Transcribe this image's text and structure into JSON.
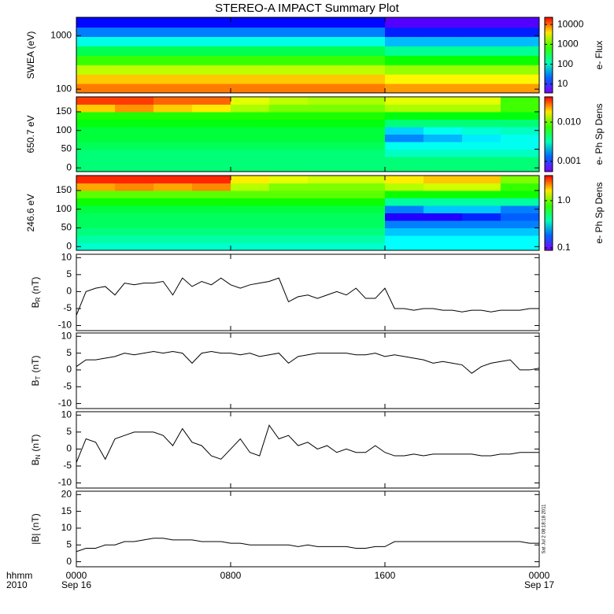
{
  "chart_data": [
    {
      "type": "heatmap",
      "title": "STEREO-A IMPACT Summary Plot",
      "ylabel": "SWEA (eV)",
      "yscale": "log",
      "xlim": [
        0,
        24
      ],
      "xticks": [
        0,
        8,
        16,
        24
      ],
      "ylim": [
        85,
        2200
      ],
      "yticks": [
        100,
        1000
      ],
      "x_edges": [
        0,
        2,
        4,
        6,
        8,
        10,
        12,
        14,
        16,
        18,
        20,
        22,
        24
      ],
      "y_edges": [
        85,
        127,
        190,
        285,
        427,
        640,
        960,
        1440,
        2200
      ],
      "z": [
        [
          9000,
          9000,
          9000,
          9000,
          9000,
          9000,
          9000,
          9000,
          7000,
          7000,
          7000,
          7000
        ],
        [
          5000,
          5000,
          5000,
          5000,
          5000,
          5000,
          5000,
          5000,
          3500,
          3500,
          3500,
          3500
        ],
        [
          2000,
          2000,
          2000,
          2000,
          2000,
          2000,
          2000,
          2000,
          1500,
          1500,
          1500,
          1500
        ],
        [
          700,
          700,
          700,
          700,
          700,
          700,
          700,
          700,
          500,
          500,
          500,
          500
        ],
        [
          250,
          250,
          250,
          250,
          250,
          250,
          250,
          250,
          150,
          150,
          150,
          150
        ],
        [
          80,
          80,
          80,
          80,
          80,
          80,
          80,
          80,
          40,
          40,
          40,
          40
        ],
        [
          25,
          25,
          25,
          25,
          25,
          25,
          25,
          25,
          12,
          12,
          12,
          12
        ],
        [
          10,
          10,
          10,
          10,
          10,
          10,
          10,
          10,
          5,
          5,
          5,
          5
        ]
      ],
      "colormap": "rainbow",
      "zscale": "log",
      "zlim": [
        3.6,
        23000
      ],
      "zticks": [
        10,
        100,
        1000,
        10000
      ],
      "zlabel": "e- Flux"
    },
    {
      "type": "heatmap",
      "ylabel": "650.7 eV",
      "xlim": [
        0,
        24
      ],
      "xticks": [
        0,
        8,
        16,
        24
      ],
      "ylim": [
        -10,
        190
      ],
      "yticks": [
        0,
        50,
        100,
        150
      ],
      "x_edges": [
        0,
        2,
        4,
        6,
        8,
        10,
        12,
        14,
        16,
        18,
        20,
        22,
        24
      ],
      "y_edges": [
        -10,
        10,
        30,
        50,
        70,
        90,
        110,
        130,
        150,
        170,
        190
      ],
      "z": [
        [
          0.004,
          0.004,
          0.004,
          0.004,
          0.004,
          0.004,
          0.004,
          0.004,
          0.004,
          0.004,
          0.004,
          0.004
        ],
        [
          0.004,
          0.004,
          0.004,
          0.004,
          0.004,
          0.004,
          0.004,
          0.004,
          0.004,
          0.004,
          0.004,
          0.004
        ],
        [
          0.004,
          0.004,
          0.004,
          0.004,
          0.004,
          0.004,
          0.004,
          0.004,
          0.003,
          0.003,
          0.003,
          0.003
        ],
        [
          0.0045,
          0.0045,
          0.0045,
          0.0045,
          0.0045,
          0.0045,
          0.0045,
          0.0045,
          0.0025,
          0.0025,
          0.0025,
          0.0025
        ],
        [
          0.005,
          0.005,
          0.005,
          0.005,
          0.005,
          0.005,
          0.005,
          0.005,
          0.0015,
          0.0018,
          0.0022,
          0.0025
        ],
        [
          0.005,
          0.005,
          0.005,
          0.005,
          0.005,
          0.005,
          0.005,
          0.005,
          0.002,
          0.0025,
          0.0028,
          0.003
        ],
        [
          0.006,
          0.006,
          0.006,
          0.006,
          0.006,
          0.006,
          0.006,
          0.006,
          0.004,
          0.004,
          0.004,
          0.004
        ],
        [
          0.007,
          0.007,
          0.007,
          0.007,
          0.007,
          0.007,
          0.007,
          0.007,
          0.006,
          0.006,
          0.006,
          0.006
        ],
        [
          0.02,
          0.025,
          0.02,
          0.018,
          0.012,
          0.01,
          0.01,
          0.01,
          0.012,
          0.012,
          0.012,
          0.008
        ],
        [
          0.035,
          0.035,
          0.03,
          0.03,
          0.015,
          0.013,
          0.012,
          0.012,
          0.015,
          0.015,
          0.015,
          0.008
        ]
      ],
      "colormap": "rainbow",
      "zscale": "log",
      "zlim": [
        0.00055,
        0.044
      ],
      "zticks": [
        0.001,
        {
          "value": 0.01,
          "label": "0.010"
        }
      ],
      "zlabel": "e- Ph Sp Dens"
    },
    {
      "type": "heatmap",
      "ylabel": "246.6 eV",
      "xlim": [
        0,
        24
      ],
      "xticks": [
        0,
        8,
        16,
        24
      ],
      "ylim": [
        -10,
        190
      ],
      "yticks": [
        0,
        50,
        100,
        150
      ],
      "x_edges": [
        0,
        2,
        4,
        6,
        8,
        10,
        12,
        14,
        16,
        18,
        20,
        22,
        24
      ],
      "y_edges": [
        -10,
        10,
        30,
        50,
        70,
        90,
        110,
        130,
        150,
        170,
        190
      ],
      "z": [
        [
          0.35,
          0.35,
          0.35,
          0.35,
          0.35,
          0.35,
          0.35,
          0.35,
          0.3,
          0.3,
          0.3,
          0.3
        ],
        [
          0.4,
          0.4,
          0.4,
          0.4,
          0.4,
          0.4,
          0.4,
          0.4,
          0.3,
          0.3,
          0.3,
          0.3
        ],
        [
          0.45,
          0.45,
          0.45,
          0.45,
          0.45,
          0.45,
          0.45,
          0.45,
          0.25,
          0.25,
          0.25,
          0.25
        ],
        [
          0.5,
          0.5,
          0.5,
          0.5,
          0.5,
          0.5,
          0.5,
          0.5,
          0.2,
          0.2,
          0.2,
          0.2
        ],
        [
          0.5,
          0.5,
          0.5,
          0.5,
          0.5,
          0.5,
          0.5,
          0.5,
          0.12,
          0.12,
          0.15,
          0.18
        ],
        [
          0.55,
          0.55,
          0.55,
          0.55,
          0.55,
          0.55,
          0.55,
          0.55,
          0.2,
          0.25,
          0.25,
          0.2
        ],
        [
          0.7,
          0.7,
          0.7,
          0.7,
          0.7,
          0.7,
          0.7,
          0.7,
          0.4,
          0.4,
          0.4,
          0.4
        ],
        [
          0.9,
          0.9,
          0.9,
          0.9,
          0.9,
          0.9,
          0.9,
          0.9,
          0.7,
          0.7,
          0.7,
          0.7
        ],
        [
          2,
          2.2,
          2,
          2.2,
          1.2,
          1,
          1,
          1,
          1.2,
          1.3,
          1.3,
          0.8
        ],
        [
          3,
          3,
          3,
          3,
          1.6,
          1.4,
          1.3,
          1.3,
          1.6,
          1.8,
          1.8,
          1
        ]
      ],
      "colormap": "rainbow",
      "zscale": "log",
      "zlim": [
        0.089,
        3.4
      ],
      "zticks": [
        0.1,
        {
          "value": 1,
          "label": "1.0"
        }
      ],
      "zlabel": "e- Ph Sp Dens"
    },
    {
      "type": "line",
      "ylabel": "B",
      "ylabel_sub": "R",
      "ylabel_unit": "(nT)",
      "color": "#000000",
      "xlim": [
        0,
        24
      ],
      "xticks": [
        0,
        8,
        16,
        24
      ],
      "ylim": [
        -11.5,
        11
      ],
      "yticks": [
        -10,
        -5,
        0,
        5,
        10
      ],
      "x": [
        0,
        0.5,
        1,
        1.5,
        2,
        2.5,
        3,
        3.5,
        4,
        4.5,
        5,
        5.5,
        6,
        6.5,
        7,
        7.5,
        8,
        8.5,
        9,
        9.5,
        10,
        10.5,
        11,
        11.5,
        12,
        12.5,
        13,
        13.5,
        14,
        14.5,
        15,
        15.5,
        16,
        16.5,
        17,
        17.5,
        18,
        18.5,
        19,
        19.5,
        20,
        20.5,
        21,
        21.5,
        22,
        22.5,
        23,
        23.5,
        24
      ],
      "values": [
        -7,
        0,
        1,
        1.5,
        -1,
        2.5,
        2,
        2.5,
        2.5,
        3,
        -1,
        4,
        1.5,
        3,
        2,
        4,
        2,
        1,
        2,
        2.5,
        3,
        4,
        -3,
        -1.5,
        -1,
        -2,
        -1,
        0,
        -1,
        1,
        -2,
        -2,
        1,
        -5,
        -5,
        -5.5,
        -5,
        -5,
        -5.5,
        -5.5,
        -6,
        -5.5,
        -5.5,
        -6,
        -5.5,
        -5.5,
        -5.5,
        -5,
        -5
      ]
    },
    {
      "type": "line",
      "ylabel": "B",
      "ylabel_sub": "T",
      "ylabel_unit": "(nT)",
      "color": "#000000",
      "xlim": [
        0,
        24
      ],
      "xticks": [
        0,
        8,
        16,
        24
      ],
      "ylim": [
        -11.5,
        11
      ],
      "yticks": [
        -10,
        -5,
        0,
        5,
        10
      ],
      "x": [
        0,
        0.5,
        1,
        1.5,
        2,
        2.5,
        3,
        3.5,
        4,
        4.5,
        5,
        5.5,
        6,
        6.5,
        7,
        7.5,
        8,
        8.5,
        9,
        9.5,
        10,
        10.5,
        11,
        11.5,
        12,
        12.5,
        13,
        13.5,
        14,
        14.5,
        15,
        15.5,
        16,
        16.5,
        17,
        17.5,
        18,
        18.5,
        19,
        19.5,
        20,
        20.5,
        21,
        21.5,
        22,
        22.5,
        23,
        23.5,
        24
      ],
      "values": [
        1,
        3,
        3,
        3.5,
        4,
        5,
        4.5,
        5,
        5.5,
        5,
        5.5,
        5,
        2,
        5,
        5.5,
        5,
        5,
        4.5,
        5,
        4,
        4.5,
        5,
        2,
        4,
        4.5,
        5,
        5,
        5,
        5,
        4.5,
        4.5,
        5,
        4,
        4.5,
        4,
        3.5,
        3,
        2,
        2.5,
        2,
        1.5,
        -1,
        1,
        2,
        2.5,
        3,
        0,
        0,
        0.5
      ]
    },
    {
      "type": "line",
      "ylabel": "B",
      "ylabel_sub": "N",
      "ylabel_unit": "(nT)",
      "color": "#000000",
      "xlim": [
        0,
        24
      ],
      "xticks": [
        0,
        8,
        16,
        24
      ],
      "ylim": [
        -11.5,
        11
      ],
      "yticks": [
        -10,
        -5,
        0,
        5,
        10
      ],
      "x": [
        0,
        0.5,
        1,
        1.5,
        2,
        2.5,
        3,
        3.5,
        4,
        4.5,
        5,
        5.5,
        6,
        6.5,
        7,
        7.5,
        8,
        8.5,
        9,
        9.5,
        10,
        10.5,
        11,
        11.5,
        12,
        12.5,
        13,
        13.5,
        14,
        14.5,
        15,
        15.5,
        16,
        16.5,
        17,
        17.5,
        18,
        18.5,
        19,
        19.5,
        20,
        20.5,
        21,
        21.5,
        22,
        22.5,
        23,
        23.5,
        24
      ],
      "values": [
        -4,
        3,
        2,
        -3,
        3,
        4,
        5,
        5,
        5,
        4,
        1,
        6,
        2,
        1,
        -2,
        -3,
        0,
        3,
        -1,
        -2,
        7,
        3,
        4,
        1,
        2,
        0,
        1,
        -1,
        0,
        -1,
        -1,
        1,
        -1,
        -2,
        -2,
        -1.5,
        -2,
        -1.5,
        -1.5,
        -1.5,
        -1.5,
        -1.5,
        -2,
        -2,
        -1.5,
        -1.5,
        -1,
        -1,
        -1
      ]
    },
    {
      "type": "line",
      "ylabel": "|B| (nT)",
      "color": "#000000",
      "xlim": [
        0,
        24
      ],
      "ylim": [
        -1.5,
        21
      ],
      "yticks": [
        0,
        5,
        10,
        15,
        20
      ],
      "xticks": [
        {
          "value": 0,
          "label": "0000"
        },
        {
          "value": 8,
          "label": "0800"
        },
        {
          "value": 16,
          "label": "1600"
        },
        {
          "value": 24,
          "label": "0000"
        }
      ],
      "date_labels": [
        {
          "value": 0,
          "label": "Sep 16"
        },
        {
          "value": 24,
          "label": "Sep 17"
        }
      ],
      "x_row_labels": [
        "hhmm",
        "2010"
      ],
      "timestamp": "Sat Jul  2 08:18:18 2011",
      "x": [
        0,
        0.5,
        1,
        1.5,
        2,
        2.5,
        3,
        3.5,
        4,
        4.5,
        5,
        5.5,
        6,
        6.5,
        7,
        7.5,
        8,
        8.5,
        9,
        9.5,
        10,
        10.5,
        11,
        11.5,
        12,
        12.5,
        13,
        13.5,
        14,
        14.5,
        15,
        15.5,
        16,
        16.5,
        17,
        17.5,
        18,
        18.5,
        19,
        19.5,
        20,
        20.5,
        21,
        21.5,
        22,
        22.5,
        23,
        23.5,
        24
      ],
      "values": [
        3,
        4,
        4,
        5,
        5,
        6,
        6,
        6.5,
        7,
        7,
        6.5,
        6.5,
        6.5,
        6,
        6,
        6,
        5.5,
        5.5,
        5,
        5,
        5,
        5,
        5,
        4.5,
        5,
        4.5,
        4.5,
        4.5,
        4.5,
        4,
        4,
        4.5,
        4.5,
        6,
        6,
        6,
        6,
        6,
        6,
        6,
        6,
        6,
        6,
        6,
        6,
        6,
        6,
        5.5,
        5.5
      ]
    }
  ]
}
